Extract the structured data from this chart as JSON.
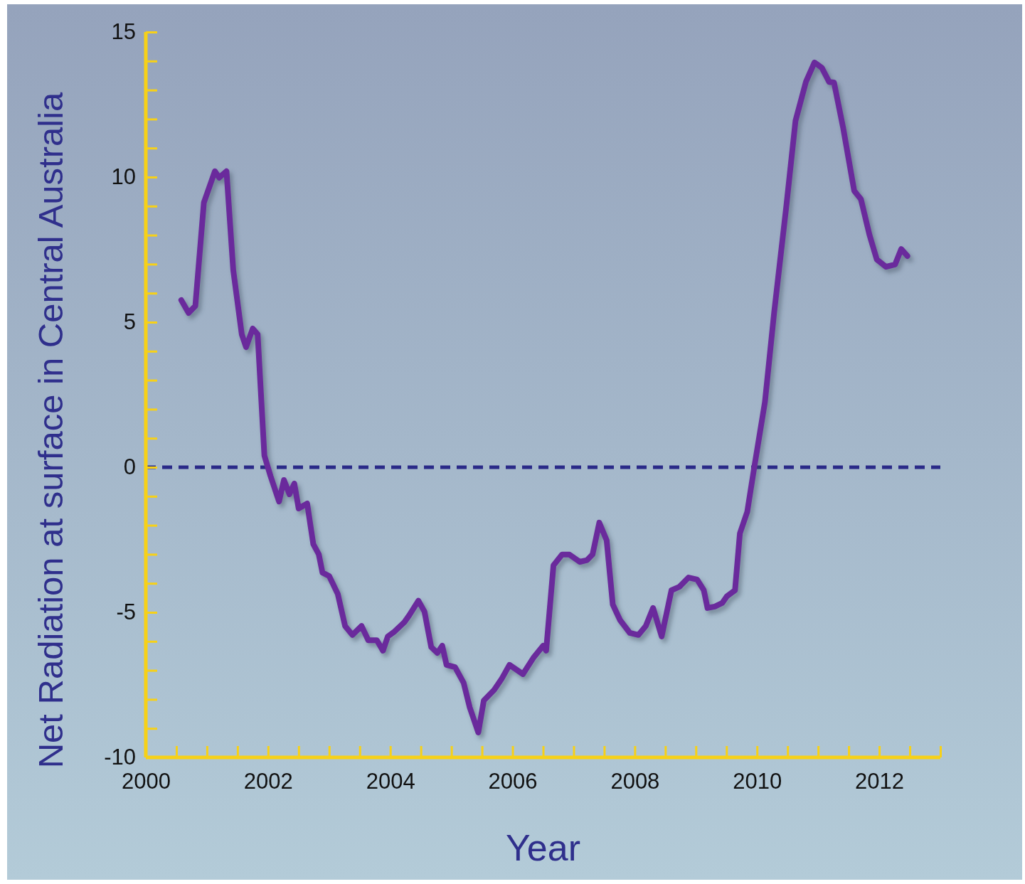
{
  "chart_data": {
    "type": "line",
    "xlabel": "Year",
    "ylabel": "Net Radiation at surface in Central Australia",
    "xlim": [
      2000,
      2013
    ],
    "ylim": [
      -10,
      15
    ],
    "xticks": [
      2000,
      {
        "value": 2000.5,
        "label": null
      },
      {
        "value": 2001,
        "label": null
      },
      {
        "value": 2001.5,
        "label": null
      },
      2002,
      {
        "value": 2002.5,
        "label": null
      },
      {
        "value": 2003,
        "label": null
      },
      {
        "value": 2003.5,
        "label": null
      },
      2004,
      {
        "value": 2004.5,
        "label": null
      },
      {
        "value": 2005,
        "label": null
      },
      {
        "value": 2005.5,
        "label": null
      },
      2006,
      {
        "value": 2006.5,
        "label": null
      },
      {
        "value": 2007,
        "label": null
      },
      {
        "value": 2007.5,
        "label": null
      },
      2008,
      {
        "value": 2008.5,
        "label": null
      },
      {
        "value": 2009,
        "label": null
      },
      {
        "value": 2009.5,
        "label": null
      },
      2010,
      {
        "value": 2010.5,
        "label": null
      },
      {
        "value": 2011,
        "label": null
      },
      {
        "value": 2011.5,
        "label": null
      },
      2012,
      {
        "value": 2012.5,
        "label": null
      },
      {
        "value": 2013,
        "label": null
      }
    ],
    "yticks": [
      -10,
      {
        "value": -9,
        "label": null
      },
      {
        "value": -8,
        "label": null
      },
      {
        "value": -7,
        "label": null
      },
      {
        "value": -6,
        "label": null
      },
      -5,
      {
        "value": -4,
        "label": null
      },
      {
        "value": -3,
        "label": null
      },
      {
        "value": -2,
        "label": null
      },
      {
        "value": -1,
        "label": null
      },
      0,
      {
        "value": 1,
        "label": null
      },
      {
        "value": 2,
        "label": null
      },
      {
        "value": 3,
        "label": null
      },
      {
        "value": 4,
        "label": null
      },
      5,
      {
        "value": 6,
        "label": null
      },
      {
        "value": 7,
        "label": null
      },
      {
        "value": 8,
        "label": null
      },
      {
        "value": 9,
        "label": null
      },
      10,
      {
        "value": 11,
        "label": null
      },
      {
        "value": 12,
        "label": null
      },
      {
        "value": 13,
        "label": null
      },
      {
        "value": 14,
        "label": null
      },
      15
    ],
    "grid": false,
    "marker": "none",
    "line_style": "solid",
    "ref_lines": [
      {
        "axis": "y",
        "value": 0,
        "color": "#2a2a88",
        "line_style": "dashed"
      }
    ],
    "series": [
      {
        "color": "#6a2c9c",
        "x": [
          2000.58,
          2000.7,
          2000.81,
          2000.95,
          2001.13,
          2001.2,
          2001.32,
          2001.43,
          2001.57,
          2001.64,
          2001.75,
          2001.83,
          2001.94,
          2002.04,
          2002.18,
          2002.26,
          2002.35,
          2002.43,
          2002.5,
          2002.64,
          2002.74,
          2002.83,
          2002.89,
          2003.0,
          2003.14,
          2003.26,
          2003.38,
          2003.53,
          2003.64,
          2003.78,
          2003.88,
          2003.96,
          2004.07,
          2004.23,
          2004.31,
          2004.46,
          2004.56,
          2004.67,
          2004.77,
          2004.85,
          2004.92,
          2005.06,
          2005.2,
          2005.3,
          2005.44,
          2005.53,
          2005.7,
          2005.82,
          2005.95,
          2006.17,
          2006.34,
          2006.5,
          2006.55,
          2006.67,
          2006.81,
          2006.93,
          2007.1,
          2007.22,
          2007.31,
          2007.42,
          2007.54,
          2007.64,
          2007.76,
          2007.92,
          2008.06,
          2008.18,
          2008.3,
          2008.44,
          2008.6,
          2008.73,
          2008.88,
          2009.02,
          2009.13,
          2009.19,
          2009.31,
          2009.43,
          2009.51,
          2009.64,
          2009.72,
          2009.84,
          2009.95,
          2010.13,
          2010.28,
          2010.48,
          2010.63,
          2010.8,
          2010.94,
          2011.06,
          2011.18,
          2011.26,
          2011.41,
          2011.59,
          2011.7,
          2011.84,
          2011.96,
          2012.11,
          2012.26,
          2012.36,
          2012.46
        ],
        "values": [
          5.76,
          5.32,
          5.56,
          9.12,
          10.2,
          9.98,
          10.2,
          6.8,
          4.58,
          4.14,
          4.78,
          4.58,
          0.4,
          -0.3,
          -1.18,
          -0.44,
          -0.93,
          -0.56,
          -1.42,
          -1.25,
          -2.65,
          -3.0,
          -3.63,
          -3.75,
          -4.36,
          -5.47,
          -5.78,
          -5.47,
          -5.96,
          -5.96,
          -6.32,
          -5.83,
          -5.66,
          -5.34,
          -5.1,
          -4.6,
          -4.98,
          -6.2,
          -6.4,
          -6.15,
          -6.81,
          -6.89,
          -7.43,
          -8.28,
          -9.14,
          -8.04,
          -7.67,
          -7.3,
          -6.81,
          -7.13,
          -6.57,
          -6.15,
          -6.32,
          -3.38,
          -3.01,
          -3.01,
          -3.26,
          -3.2,
          -3.0,
          -1.91,
          -2.52,
          -4.73,
          -5.27,
          -5.71,
          -5.78,
          -5.47,
          -4.85,
          -5.83,
          -4.24,
          -4.12,
          -3.8,
          -3.87,
          -4.24,
          -4.85,
          -4.8,
          -4.68,
          -4.44,
          -4.24,
          -2.28,
          -1.54,
          -0.07,
          2.25,
          5.32,
          9.0,
          11.94,
          13.28,
          13.95,
          13.77,
          13.28,
          13.26,
          11.69,
          9.53,
          9.24,
          8.01,
          7.16,
          6.91,
          6.99,
          7.52,
          7.28
        ]
      }
    ]
  }
}
